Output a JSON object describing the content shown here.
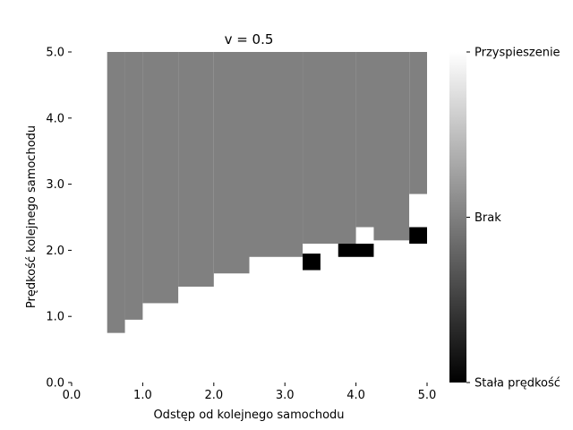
{
  "chart_data": {
    "type": "heatmap",
    "title": "v = 0.5",
    "xlabel": "Odstęp od kolejnego samochodu",
    "ylabel": "Prędkość kolejnego samochodu",
    "xlim": [
      0,
      5
    ],
    "ylim": [
      0,
      5
    ],
    "xticks": [
      "0.0",
      "1.0",
      "2.0",
      "3.0",
      "4.0",
      "5.0"
    ],
    "yticks": [
      "0.0",
      "1.0",
      "2.0",
      "3.0",
      "4.0",
      "5.0"
    ],
    "grid": false,
    "colormap": "gray",
    "colors": {
      "accelerate": "#ffffff",
      "none": "#808080",
      "constant": "#000000"
    },
    "colorbar": {
      "labels": [
        "Przyspieszenie",
        "Brak",
        "Stała prędkość"
      ],
      "values": [
        1,
        0,
        -1
      ]
    },
    "region_boundary": [
      {
        "x_from": 0.0,
        "x_to": 0.5,
        "y_top": 5.0
      },
      {
        "x_from": 0.5,
        "x_to": 0.75,
        "y_top": 0.75
      },
      {
        "x_from": 0.75,
        "x_to": 1.0,
        "y_top": 0.95
      },
      {
        "x_from": 1.0,
        "x_to": 1.5,
        "y_top": 1.2
      },
      {
        "x_from": 1.5,
        "x_to": 2.0,
        "y_top": 1.45
      },
      {
        "x_from": 2.0,
        "x_to": 2.5,
        "y_top": 1.65
      },
      {
        "x_from": 2.5,
        "x_to": 3.25,
        "y_top": 1.9
      },
      {
        "x_from": 3.25,
        "x_to": 4.0,
        "y_top": 2.1
      },
      {
        "x_from": 4.0,
        "x_to": 4.75,
        "y_top": 2.15
      },
      {
        "x_from": 4.75,
        "x_to": 5.0,
        "y_top": 2.85
      }
    ],
    "gray_region_right_edge": [
      {
        "y_from": 0.0,
        "y_to": 2.85,
        "x_right": 4.75
      },
      {
        "y_from": 2.85,
        "y_to": 5.0,
        "x_right": 5.25
      }
    ],
    "special_cells": [
      {
        "x": [
          3.25,
          3.5
        ],
        "y": [
          1.7,
          1.95
        ],
        "value": "constant"
      },
      {
        "x": [
          3.75,
          4.25
        ],
        "y": [
          1.9,
          2.1
        ],
        "value": "constant"
      },
      {
        "x": [
          4.75,
          5.0
        ],
        "y": [
          2.1,
          2.35
        ],
        "value": "constant"
      },
      {
        "x": [
          4.0,
          4.25
        ],
        "y": [
          2.1,
          2.35
        ],
        "value": "accelerate"
      }
    ]
  }
}
